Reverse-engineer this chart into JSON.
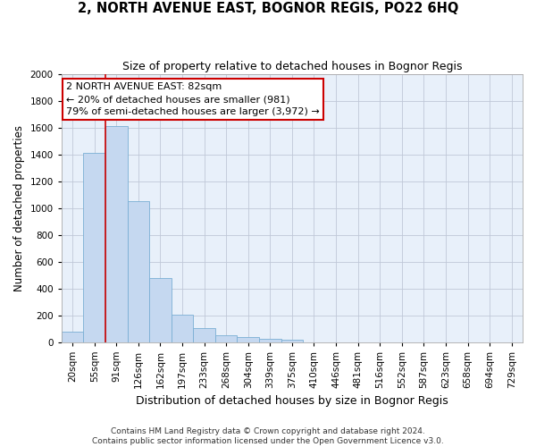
{
  "title": "2, NORTH AVENUE EAST, BOGNOR REGIS, PO22 6HQ",
  "subtitle": "Size of property relative to detached houses in Bognor Regis",
  "xlabel": "Distribution of detached houses by size in Bognor Regis",
  "ylabel": "Number of detached properties",
  "bar_values": [
    80,
    1415,
    1615,
    1050,
    480,
    205,
    105,
    48,
    35,
    22,
    15,
    0,
    0,
    0,
    0,
    0,
    0,
    0,
    0,
    0
  ],
  "bar_labels": [
    "20sqm",
    "55sqm",
    "91sqm",
    "126sqm",
    "162sqm",
    "197sqm",
    "233sqm",
    "268sqm",
    "304sqm",
    "339sqm",
    "375sqm",
    "410sqm",
    "446sqm",
    "481sqm",
    "516sqm",
    "552sqm",
    "587sqm",
    "623sqm",
    "658sqm",
    "694sqm",
    "729sqm"
  ],
  "bar_color": "#c5d8f0",
  "bar_edge_color": "#7aafd4",
  "vline_color": "#cc0000",
  "vline_x_index": 2,
  "ylim": [
    0,
    2000
  ],
  "yticks": [
    0,
    200,
    400,
    600,
    800,
    1000,
    1200,
    1400,
    1600,
    1800,
    2000
  ],
  "annotation_line1": "2 NORTH AVENUE EAST: 82sqm",
  "annotation_line2": "← 20% of detached houses are smaller (981)",
  "annotation_line3": "79% of semi-detached houses are larger (3,972) →",
  "annotation_box_color": "#ffffff",
  "annotation_box_edge": "#cc0000",
  "footer_line1": "Contains HM Land Registry data © Crown copyright and database right 2024.",
  "footer_line2": "Contains public sector information licensed under the Open Government Licence v3.0.",
  "background_color": "#ffffff",
  "plot_bg_color": "#e8f0fa",
  "grid_color": "#c0c8d8",
  "title_fontsize": 10.5,
  "subtitle_fontsize": 9,
  "ylabel_fontsize": 8.5,
  "xlabel_fontsize": 9,
  "tick_fontsize": 7.5,
  "annotation_fontsize": 8,
  "footer_fontsize": 6.5
}
